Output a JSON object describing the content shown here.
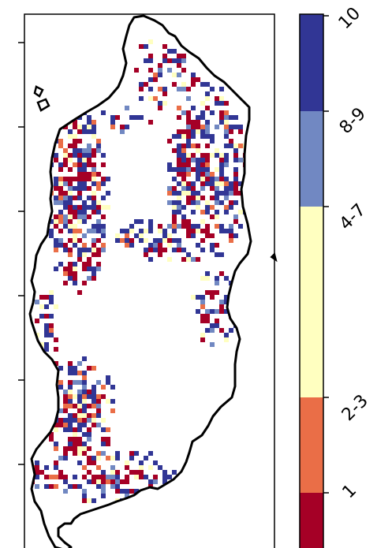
{
  "map": {
    "categories": [
      {
        "label": "1",
        "color": "#a50026"
      },
      {
        "label": "2-3",
        "color": "#ea6e47"
      },
      {
        "label": "4-7",
        "color": "#ffffc0"
      },
      {
        "label": "8-9",
        "color": "#7188c2"
      },
      {
        "label": "10",
        "color": "#313695"
      }
    ],
    "coastline_color": "#000000"
  },
  "colorbar": {
    "labels": [
      "1",
      "2-3",
      "4-7",
      "8-9",
      "10"
    ]
  }
}
